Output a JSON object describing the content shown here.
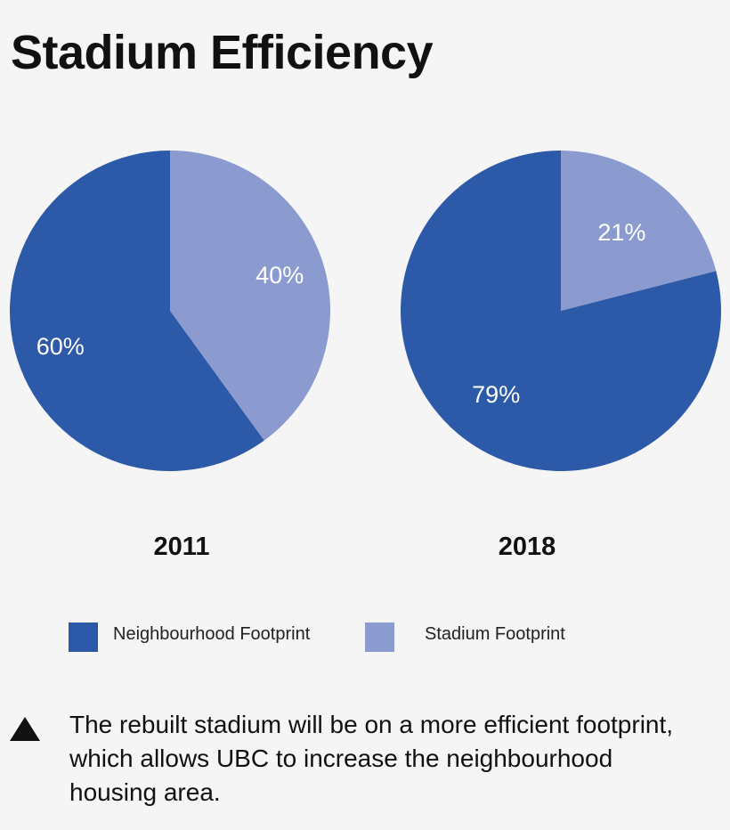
{
  "page": {
    "title": "Stadium Efficiency",
    "note": "The rebuilt stadium will be on a more efficient footprint, which allows UBC to increase the neighbourhood housing area."
  },
  "colors": {
    "neighbourhood": "#2d5aa8",
    "stadium": "#8b9bcf",
    "background": "#f5f5f6"
  },
  "icons": {
    "note_marker": "triangle-up-icon"
  },
  "chart_data": [
    {
      "type": "pie",
      "title": "2011",
      "categories": [
        "Neighbourhood Footprint",
        "Stadium Footprint"
      ],
      "values": [
        60,
        40
      ],
      "labels": [
        "60%",
        "40%"
      ],
      "legend": "bottom"
    },
    {
      "type": "pie",
      "title": "2018",
      "categories": [
        "Neighbourhood Footprint",
        "Stadium Footprint"
      ],
      "values": [
        79,
        21
      ],
      "labels": [
        "79%",
        "21%"
      ],
      "legend": "bottom"
    }
  ],
  "legend": {
    "items": [
      {
        "label": "Neighbourhood Footprint",
        "color": "#2d5aa8"
      },
      {
        "label": "Stadium Footprint",
        "color": "#8b9bcf"
      }
    ]
  }
}
